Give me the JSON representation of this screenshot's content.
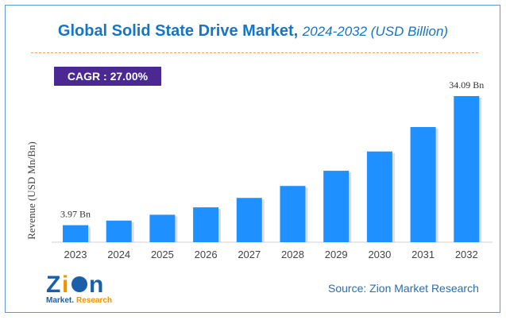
{
  "chart_data": {
    "type": "bar",
    "title": "Global Solid State Drive Market,",
    "subtitle": "2024-2032 (USD Billion)",
    "ylabel": "Revenue (USD Mn/Bn)",
    "categories": [
      "2023",
      "2024",
      "2025",
      "2026",
      "2027",
      "2028",
      "2029",
      "2030",
      "2031",
      "2032"
    ],
    "values": [
      3.97,
      5.04,
      6.4,
      8.13,
      10.33,
      13.12,
      16.66,
      21.16,
      26.87,
      34.09
    ],
    "data_labels": {
      "0": "3.97 Bn",
      "9": "34.09 Bn"
    },
    "bar_color": "#1e90ff",
    "grid": false
  },
  "cagr": "CAGR : 27.00%",
  "source": "Source: Zion Market Research",
  "logo": {
    "line1": "Zion",
    "line2": "Market.Research"
  }
}
